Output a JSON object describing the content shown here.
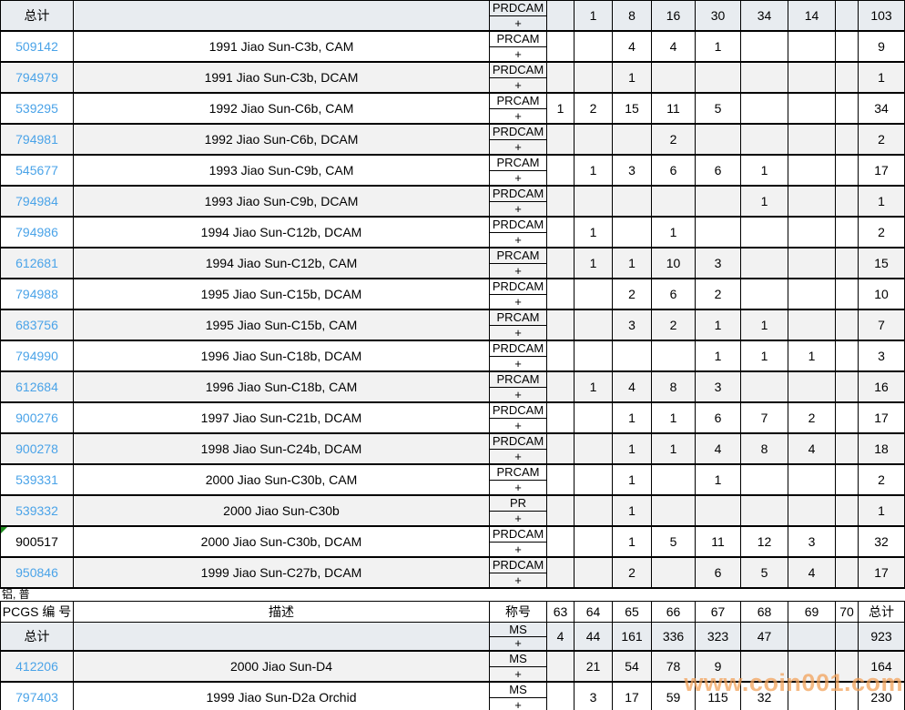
{
  "labels": {
    "section2": "铝, 普",
    "watermark": "www.coin001.com",
    "plus": "+"
  },
  "colors": {
    "link": "#4aa3e8",
    "total_row_bg": "#e8ecf0",
    "stripe": "#f2f2f2",
    "border": "#000000",
    "watermark": "#f2a35c",
    "marker_green": "#1e8c1e"
  },
  "columns": {
    "id": "PCGS 编 号",
    "desc": "描述",
    "designation": "称号",
    "grades": [
      "63",
      "64",
      "65",
      "66",
      "67",
      "68",
      "69",
      "70"
    ],
    "total": "总计"
  },
  "table1": {
    "rows": [
      {
        "id": "总计",
        "link": false,
        "total_row": true,
        "striped": false,
        "desc": "",
        "designation": "PRDCAM",
        "values": [
          "",
          "1",
          "8",
          "16",
          "30",
          "34",
          "14",
          ""
        ],
        "total": "103"
      },
      {
        "id": "509142",
        "link": true,
        "striped": false,
        "desc": "1991 Jiao Sun-C3b, CAM",
        "designation": "PRCAM",
        "values": [
          "",
          "",
          "4",
          "4",
          "1",
          "",
          "",
          ""
        ],
        "total": "9"
      },
      {
        "id": "794979",
        "link": true,
        "striped": true,
        "desc": "1991 Jiao Sun-C3b, DCAM",
        "designation": "PRDCAM",
        "values": [
          "",
          "",
          "1",
          "",
          "",
          "",
          "",
          ""
        ],
        "total": "1"
      },
      {
        "id": "539295",
        "link": true,
        "striped": false,
        "desc": "1992 Jiao Sun-C6b, CAM",
        "designation": "PRCAM",
        "values": [
          "1",
          "2",
          "15",
          "11",
          "5",
          "",
          "",
          ""
        ],
        "total": "34"
      },
      {
        "id": "794981",
        "link": true,
        "striped": true,
        "desc": "1992 Jiao Sun-C6b, DCAM",
        "designation": "PRDCAM",
        "values": [
          "",
          "",
          "",
          "2",
          "",
          "",
          "",
          ""
        ],
        "total": "2"
      },
      {
        "id": "545677",
        "link": true,
        "striped": false,
        "desc": "1993 Jiao Sun-C9b, CAM",
        "designation": "PRCAM",
        "values": [
          "",
          "1",
          "3",
          "6",
          "6",
          "1",
          "",
          ""
        ],
        "total": "17"
      },
      {
        "id": "794984",
        "link": true,
        "striped": true,
        "desc": "1993 Jiao Sun-C9b, DCAM",
        "designation": "PRDCAM",
        "values": [
          "",
          "",
          "",
          "",
          "",
          "1",
          "",
          ""
        ],
        "total": "1"
      },
      {
        "id": "794986",
        "link": true,
        "striped": false,
        "desc": "1994 Jiao Sun-C12b, DCAM",
        "designation": "PRDCAM",
        "values": [
          "",
          "1",
          "",
          "1",
          "",
          "",
          "",
          ""
        ],
        "total": "2"
      },
      {
        "id": "612681",
        "link": true,
        "striped": true,
        "desc": "1994 Jiao Sun-C12b, CAM",
        "designation": "PRCAM",
        "values": [
          "",
          "1",
          "1",
          "10",
          "3",
          "",
          "",
          ""
        ],
        "total": "15"
      },
      {
        "id": "794988",
        "link": true,
        "striped": false,
        "desc": "1995 Jiao Sun-C15b, DCAM",
        "designation": "PRDCAM",
        "values": [
          "",
          "",
          "2",
          "6",
          "2",
          "",
          "",
          ""
        ],
        "total": "10"
      },
      {
        "id": "683756",
        "link": true,
        "striped": true,
        "desc": "1995 Jiao Sun-C15b, CAM",
        "designation": "PRCAM",
        "values": [
          "",
          "",
          "3",
          "2",
          "1",
          "1",
          "",
          ""
        ],
        "total": "7"
      },
      {
        "id": "794990",
        "link": true,
        "striped": false,
        "desc": "1996 Jiao Sun-C18b, DCAM",
        "designation": "PRDCAM",
        "values": [
          "",
          "",
          "",
          "",
          "1",
          "1",
          "1",
          ""
        ],
        "total": "3"
      },
      {
        "id": "612684",
        "link": true,
        "striped": true,
        "desc": "1996 Jiao Sun-C18b, CAM",
        "designation": "PRCAM",
        "values": [
          "",
          "1",
          "4",
          "8",
          "3",
          "",
          "",
          ""
        ],
        "total": "16"
      },
      {
        "id": "900276",
        "link": true,
        "striped": false,
        "desc": "1997 Jiao Sun-C21b, DCAM",
        "designation": "PRDCAM",
        "values": [
          "",
          "",
          "1",
          "1",
          "6",
          "7",
          "2",
          ""
        ],
        "total": "17"
      },
      {
        "id": "900278",
        "link": true,
        "striped": true,
        "desc": "1998 Jiao Sun-C24b, DCAM",
        "designation": "PRDCAM",
        "values": [
          "",
          "",
          "1",
          "1",
          "4",
          "8",
          "4",
          ""
        ],
        "total": "18"
      },
      {
        "id": "539331",
        "link": true,
        "striped": false,
        "desc": "2000 Jiao Sun-C30b, CAM",
        "designation": "PRCAM",
        "values": [
          "",
          "",
          "1",
          "",
          "1",
          "",
          "",
          ""
        ],
        "total": "2"
      },
      {
        "id": "539332",
        "link": true,
        "striped": true,
        "desc": "2000 Jiao Sun-C30b",
        "designation": "PR",
        "values": [
          "",
          "",
          "1",
          "",
          "",
          "",
          "",
          ""
        ],
        "total": "1"
      },
      {
        "id": "900517",
        "link": false,
        "striped": false,
        "marker": true,
        "desc": "2000 Jiao Sun-C30b, DCAM",
        "designation": "PRDCAM",
        "values": [
          "",
          "",
          "1",
          "5",
          "11",
          "12",
          "3",
          ""
        ],
        "total": "32"
      },
      {
        "id": "950846",
        "link": true,
        "striped": true,
        "desc": "1999 Jiao Sun-C27b, DCAM",
        "designation": "PRDCAM",
        "values": [
          "",
          "",
          "2",
          "",
          "6",
          "5",
          "4",
          ""
        ],
        "total": "17"
      }
    ]
  },
  "table2": {
    "has_header": true,
    "rows": [
      {
        "id": "总计",
        "link": false,
        "total_row": true,
        "striped": false,
        "desc": "",
        "designation": "MS",
        "values": [
          "4",
          "44",
          "161",
          "336",
          "323",
          "47",
          "",
          ""
        ],
        "total": "923"
      },
      {
        "id": "412206",
        "link": true,
        "striped": true,
        "desc": "2000 Jiao Sun-D4",
        "designation": "MS",
        "values": [
          "",
          "21",
          "54",
          "78",
          "9",
          "",
          "",
          ""
        ],
        "total": "164"
      },
      {
        "id": "797403",
        "link": true,
        "striped": false,
        "desc": "1999 Jiao Sun-D2a Orchid",
        "designation": "MS",
        "values": [
          "",
          "3",
          "17",
          "59",
          "115",
          "32",
          "",
          ""
        ],
        "total": "230"
      }
    ]
  }
}
